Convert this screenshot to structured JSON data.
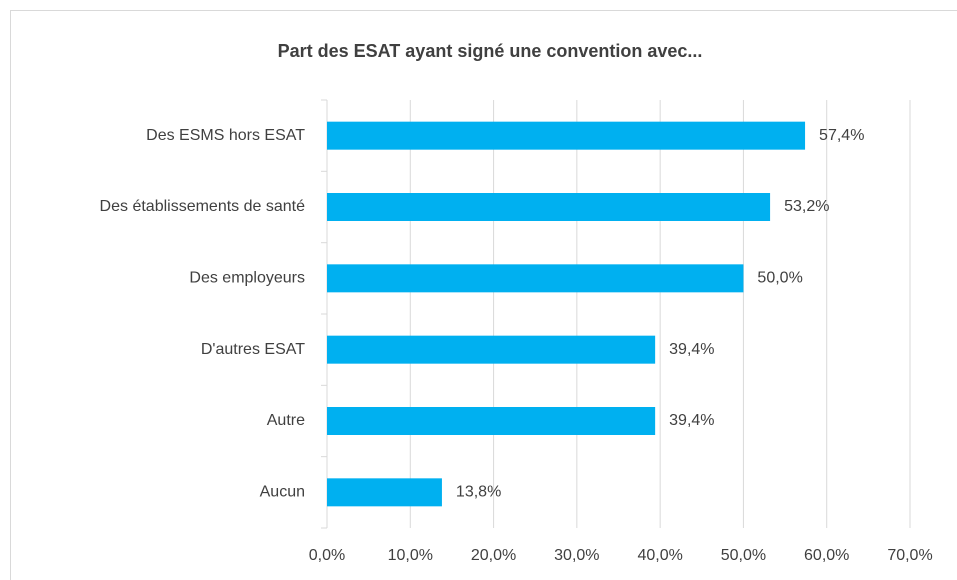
{
  "chart_data": {
    "type": "bar",
    "orientation": "horizontal",
    "title": "Part des ESAT ayant signé une convention avec...",
    "categories": [
      "Des ESMS hors ESAT",
      "Des établissements de santé",
      "Des employeurs",
      "D'autres ESAT",
      "Autre",
      "Aucun"
    ],
    "values": [
      57.4,
      53.2,
      50.0,
      39.4,
      39.4,
      13.8
    ],
    "value_labels": [
      "57,4%",
      "53,2%",
      "50,0%",
      "39,4%",
      "39,4%",
      "13,8%"
    ],
    "color": "#00b0f0",
    "xlim": [
      0,
      70
    ],
    "xticks": [
      {
        "value": 0,
        "label": "0,0%"
      },
      {
        "value": 10,
        "label": "10,0%"
      },
      {
        "value": 20,
        "label": "20,0%"
      },
      {
        "value": 30,
        "label": "30,0%"
      },
      {
        "value": 40,
        "label": "40,0%"
      },
      {
        "value": 50,
        "label": "50,0%"
      },
      {
        "value": 60,
        "label": "60,0%"
      },
      {
        "value": 70,
        "label": "70,0%"
      }
    ],
    "grid": true
  }
}
